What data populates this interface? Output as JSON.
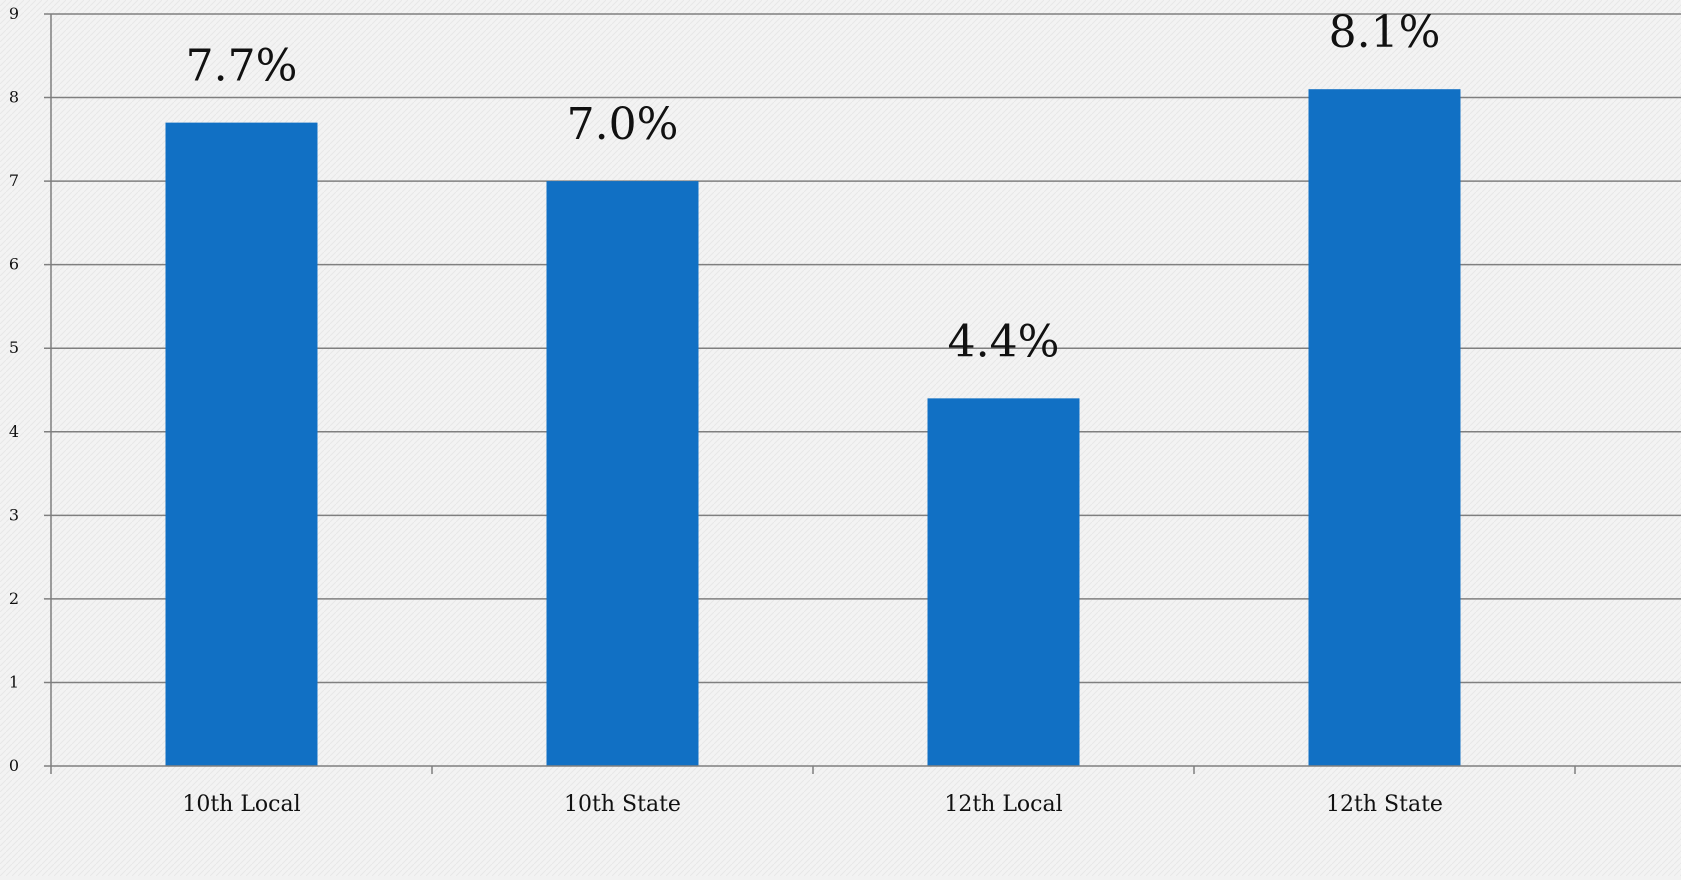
{
  "chart_data": {
    "type": "bar",
    "categories": [
      "10th Local",
      "10th State",
      "12th Local",
      "12th State"
    ],
    "values": [
      7.7,
      7.0,
      4.4,
      8.1
    ],
    "data_labels": [
      "7.7%",
      "7.0%",
      "4.4%",
      "8.1%"
    ],
    "title": "",
    "xlabel": "",
    "ylabel": "",
    "ylim": [
      0,
      9
    ],
    "yticks": [
      0,
      1,
      2,
      3,
      4,
      5,
      6,
      7,
      8,
      9
    ],
    "grid": true,
    "legend": "none",
    "colors": {
      "bar": "#1170c4",
      "grid": "#7f7f7f",
      "axis": "#7f7f7f",
      "background": "#f2f2f2"
    }
  }
}
